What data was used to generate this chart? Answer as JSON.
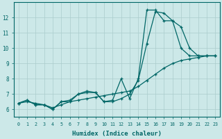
{
  "xlabel": "Humidex (Indice chaleur)",
  "background_color": "#cce8e8",
  "grid_color": "#aacccc",
  "line_color": "#006666",
  "xlim": [
    -0.5,
    23.5
  ],
  "ylim": [
    5.5,
    13.0
  ],
  "yticks": [
    6,
    7,
    8,
    9,
    10,
    11,
    12
  ],
  "xticks": [
    0,
    1,
    2,
    3,
    4,
    5,
    6,
    7,
    8,
    9,
    10,
    11,
    12,
    13,
    14,
    15,
    16,
    17,
    18,
    19,
    20,
    21,
    22,
    23
  ],
  "series": [
    {
      "x": [
        0,
        1,
        2,
        3,
        4,
        5,
        6,
        7,
        8,
        9,
        10,
        11,
        12,
        13,
        14,
        15,
        16,
        17,
        18,
        19,
        20,
        21,
        22,
        23
      ],
      "y": [
        6.4,
        6.6,
        6.3,
        6.3,
        6.0,
        6.5,
        6.6,
        7.0,
        7.1,
        7.1,
        6.5,
        6.5,
        6.7,
        7.0,
        7.9,
        10.3,
        12.4,
        12.3,
        11.8,
        11.4,
        10.0,
        9.5,
        9.5,
        9.5
      ]
    },
    {
      "x": [
        0,
        1,
        2,
        3,
        4,
        5,
        6,
        7,
        8,
        9,
        10,
        11,
        12,
        13,
        14,
        15,
        16,
        17,
        18,
        19,
        20,
        21,
        22,
        23
      ],
      "y": [
        6.4,
        6.6,
        6.3,
        6.3,
        6.0,
        6.5,
        6.5,
        7.0,
        7.2,
        7.1,
        6.5,
        6.6,
        8.0,
        6.7,
        8.0,
        12.5,
        12.5,
        11.8,
        11.8,
        10.0,
        9.5,
        9.5,
        9.5,
        9.5
      ]
    },
    {
      "x": [
        0,
        1,
        2,
        3,
        4,
        5,
        6,
        7,
        8,
        9,
        10,
        11,
        12,
        13,
        14,
        15,
        16,
        17,
        18,
        19,
        20,
        21,
        22,
        23
      ],
      "y": [
        6.4,
        6.5,
        6.4,
        6.3,
        6.1,
        6.3,
        6.5,
        6.6,
        6.7,
        6.8,
        6.9,
        7.0,
        7.1,
        7.2,
        7.5,
        7.9,
        8.3,
        8.7,
        9.0,
        9.2,
        9.3,
        9.4,
        9.5,
        9.5
      ]
    }
  ]
}
